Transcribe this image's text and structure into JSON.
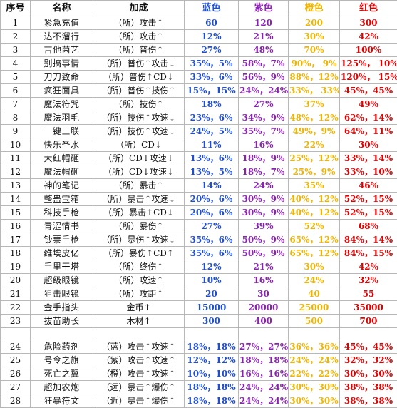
{
  "colors": {
    "blue": "#1f4fd0",
    "purple": "#8a21b3",
    "orange": "#f0b400",
    "red": "#e00000"
  },
  "headers": {
    "id": "序号",
    "name": "名称",
    "bonus": "加成",
    "blue": "蓝色",
    "purple": "紫色",
    "orange": "橙色",
    "red": "红色"
  },
  "rows": [
    {
      "id": "1",
      "name": "紧急充值",
      "bonus": "（所）攻击↑",
      "blue": "60",
      "purple": "120",
      "orange": "200",
      "red": "300"
    },
    {
      "id": "2",
      "name": "达不溜行",
      "bonus": "（所）攻击↑",
      "blue": "12%",
      "purple": "21%",
      "orange": "30%",
      "red": "42%"
    },
    {
      "id": "3",
      "name": "吉他菌艺",
      "bonus": "（所）普伤↑",
      "blue": "27%",
      "purple": "48%",
      "orange": "70%",
      "red": "100%"
    },
    {
      "id": "4",
      "name": "别搞事情",
      "bonus": "（所）普伤↑攻击↓",
      "blue": "35%，5%",
      "purple": "58%，7%",
      "orange": "90%， 9%",
      "red": "125%， 10%"
    },
    {
      "id": "5",
      "name": "刀刀致命",
      "bonus": "（所）普伤↑CD↓",
      "blue": "33%，6%",
      "purple": "56%，9%",
      "orange": "88%，12%",
      "red": "120%， 15%"
    },
    {
      "id": "6",
      "name": "疯狂面具",
      "bonus": "（所）普伤↑技伤↑",
      "blue": "15%，15%",
      "purple": "24%，24%",
      "orange": "33%， 33%",
      "red": "45%，45%"
    },
    {
      "id": "7",
      "name": "魔法符咒",
      "bonus": "（所）技伤↑",
      "blue": "18%",
      "purple": "27%",
      "orange": "37%",
      "red": "49%"
    },
    {
      "id": "8",
      "name": "魔法羽毛",
      "bonus": "（所）技伤↑攻速↓",
      "blue": "23%，6%",
      "purple": "34%，9%",
      "orange": "48%，12%",
      "red": "62%，14%"
    },
    {
      "id": "9",
      "name": "一键三联",
      "bonus": "（所）技伤↑攻速↓",
      "blue": "24%，5%",
      "purple": "35%，7%",
      "orange": "49%，9%",
      "red": "64%，11%"
    },
    {
      "id": "10",
      "name": "快乐圣水",
      "bonus": "（所）CD↓",
      "blue": "11%",
      "purple": "16%",
      "orange": "22%",
      "red": "30%"
    },
    {
      "id": "11",
      "name": "大红帽砸",
      "bonus": "（所）CD↓攻速↓",
      "blue": "13%，6%",
      "purple": "18%，9%",
      "orange": "25%，12%",
      "red": "33%，14%"
    },
    {
      "id": "12",
      "name": "魔法帽砸",
      "bonus": "（所）CD↓攻速↓",
      "blue": "13%，5%",
      "purple": "18%，7%",
      "orange": "25%，9%",
      "red": "33%，10%"
    },
    {
      "id": "13",
      "name": "神的笔记",
      "bonus": "（所）暴击↑",
      "blue": "14%",
      "purple": "24%",
      "orange": "35%",
      "red": "46%"
    },
    {
      "id": "14",
      "name": "整蛊宝箱",
      "bonus": "（所）暴击↑攻速↓",
      "blue": "20%，6%",
      "purple": "30%，9%",
      "orange": "40%，12%",
      "red": "52%，15%"
    },
    {
      "id": "15",
      "name": "科技手枪",
      "bonus": "（所）暴击↑CD↓",
      "blue": "20%，6%",
      "purple": "30%，9%",
      "orange": "40%，12%",
      "red": "52%，15%"
    },
    {
      "id": "16",
      "name": "青涩情书",
      "bonus": "（所）暴伤↑",
      "blue": "27%",
      "purple": "39%",
      "orange": "52%",
      "red": "68%"
    },
    {
      "id": "17",
      "name": "钞票手枪",
      "bonus": "（所）暴伤↑攻速↓",
      "blue": "35%，6%",
      "purple": "50%，9%",
      "orange": "65%，12%",
      "red": "84%，14%"
    },
    {
      "id": "18",
      "name": "维埃皮亿",
      "bonus": "（所）暴伤↑CD↑",
      "blue": "35%，6%",
      "purple": "50%，9%",
      "orange": "65%，12%",
      "red": "84%，15%"
    },
    {
      "id": "19",
      "name": "手里干塔",
      "bonus": "（所）终伤↑",
      "blue": "12%",
      "purple": "21%",
      "orange": "30%",
      "red": "42%"
    },
    {
      "id": "20",
      "name": "超级眼镜",
      "bonus": "（所）攻速↑",
      "blue": "10%",
      "purple": "16%",
      "orange": "24%",
      "red": "32%"
    },
    {
      "id": "21",
      "name": "狙击眼镜",
      "bonus": "（所）攻距↑",
      "blue": "20",
      "purple": "30",
      "orange": "40",
      "red": "55"
    },
    {
      "id": "22",
      "name": "金手指头",
      "bonus": "金币↑",
      "blue": "15000",
      "purple": "20000",
      "orange": "25000",
      "red": "35000"
    },
    {
      "id": "23",
      "name": "拔苗助长",
      "bonus": "木材↑",
      "blue": "300",
      "purple": "400",
      "orange": "500",
      "red": "700"
    }
  ],
  "rows2": [
    {
      "id": "24",
      "name": "危险药剂",
      "bonus": "（蓝）攻击↑攻速↑",
      "blue": "18%，18%",
      "purple": "27%，27%",
      "orange": "36%，36%",
      "red": "45%，45%"
    },
    {
      "id": "25",
      "name": "号令之旗",
      "bonus": "（紫）攻击↑攻速↑",
      "blue": "12%，12%",
      "purple": "18%，18%",
      "orange": "24%，24%",
      "red": "32%，32%"
    },
    {
      "id": "26",
      "name": "死亡之翼",
      "bonus": "（橙）攻击↑攻速↑",
      "blue": "10%，10%",
      "purple": "16%，16%",
      "orange": "22%，22%",
      "red": "30%，30%"
    },
    {
      "id": "27",
      "name": "超加农炮",
      "bonus": "（远）暴击↑爆伤↑",
      "blue": "18%，18%",
      "purple": "24%，24%",
      "orange": "30%，30%",
      "red": "38%，38%"
    },
    {
      "id": "28",
      "name": "狂暴符文",
      "bonus": "（近）暴击↑爆伤↑",
      "blue": "18%，18%",
      "purple": "24%，24%",
      "orange": "30%，30%",
      "red": "38%，38%"
    }
  ]
}
